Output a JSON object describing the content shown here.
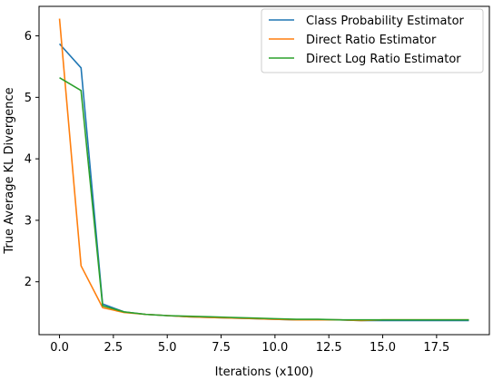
{
  "chart_data": {
    "type": "line",
    "title": "",
    "xlabel": "Iterations (x100)",
    "ylabel": "True Average KL Divergence",
    "xlim": [
      -0.95,
      19.95
    ],
    "ylim": [
      1.14,
      6.48
    ],
    "xticks": [
      0,
      2.5,
      5,
      7.5,
      10,
      12.5,
      15,
      17.5
    ],
    "xtick_labels": [
      "0.0",
      "2.5",
      "5.0",
      "7.5",
      "10.0",
      "12.5",
      "15.0",
      "17.5"
    ],
    "yticks": [
      2,
      3,
      4,
      5,
      6
    ],
    "ytick_labels": [
      "2",
      "3",
      "4",
      "5",
      "6"
    ],
    "grid": false,
    "legend_position": "top-right",
    "x": [
      0,
      1,
      2,
      3,
      4,
      5,
      6,
      7,
      8,
      9,
      10,
      11,
      12,
      13,
      14,
      15,
      16,
      17,
      18,
      19
    ],
    "series": [
      {
        "name": "Class Probability Estimator",
        "color": "#1f77b4",
        "values": [
          5.87,
          5.48,
          1.64,
          1.51,
          1.47,
          1.45,
          1.43,
          1.42,
          1.41,
          1.4,
          1.39,
          1.38,
          1.38,
          1.38,
          1.37,
          1.37,
          1.37,
          1.37,
          1.37,
          1.37
        ]
      },
      {
        "name": "Direct Ratio Estimator",
        "color": "#ff7f0e",
        "values": [
          6.28,
          2.26,
          1.58,
          1.5,
          1.47,
          1.45,
          1.43,
          1.42,
          1.41,
          1.4,
          1.39,
          1.38,
          1.38,
          1.38,
          1.37,
          1.38,
          1.38,
          1.38,
          1.38,
          1.38
        ]
      },
      {
        "name": "Direct Log Ratio Estimator",
        "color": "#2ca02c",
        "values": [
          5.32,
          5.11,
          1.61,
          1.51,
          1.47,
          1.45,
          1.44,
          1.43,
          1.42,
          1.41,
          1.4,
          1.39,
          1.39,
          1.38,
          1.38,
          1.38,
          1.38,
          1.38,
          1.38,
          1.38
        ]
      }
    ]
  }
}
